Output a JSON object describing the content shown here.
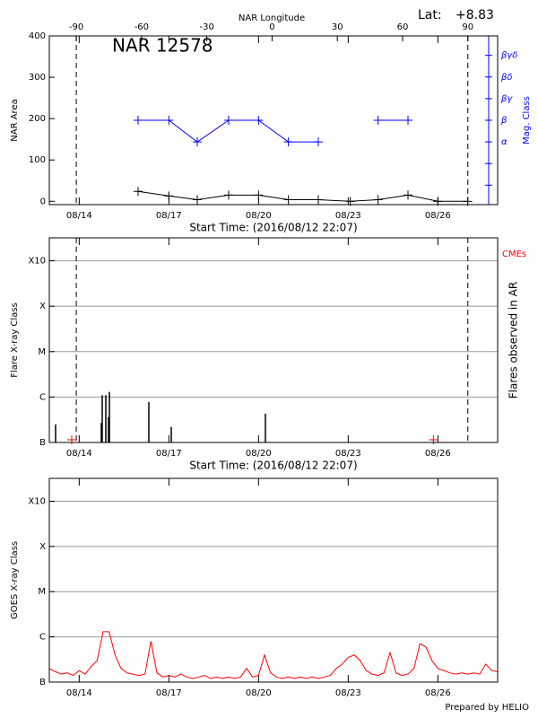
{
  "footer": "Prepared by HELIO",
  "chart_data": [
    {
      "type": "line",
      "title": "NAR 12578",
      "lat_label": "Lat:",
      "lat_value": "+8.83",
      "x2label": "NAR Longitude",
      "xlabel": "Start Time: (2016/08/12 22:07)",
      "ylabel": "NAR Area",
      "y2label": "Mag. Class",
      "x": [
        15.97,
        17.0,
        17.95,
        19.0,
        20.0,
        21.0,
        22.0,
        23.07,
        24.0,
        25.0,
        26.0,
        27.0
      ],
      "series": [
        {
          "color": "#000000",
          "values": [
            24,
            13,
            4,
            15,
            15,
            4,
            4,
            0,
            4,
            15,
            0,
            0
          ]
        },
        {
          "color": "#0000ff",
          "axis": "y2",
          "values": [
            2,
            2,
            1,
            2,
            2,
            1,
            1,
            null,
            2,
            2,
            null,
            null
          ]
        }
      ],
      "markers": true,
      "xlim": [
        13.0,
        28.0
      ],
      "xticks": [
        {
          "value": 14,
          "label": "08/14"
        },
        {
          "value": 17,
          "label": "08/17"
        },
        {
          "value": 20,
          "label": "08/20"
        },
        {
          "value": 23,
          "label": "08/23"
        },
        {
          "value": 26,
          "label": "08/26"
        }
      ],
      "x2lim": [
        -102.4,
        103.7
      ],
      "x2ticks": [
        -90,
        -60,
        -30,
        0,
        30,
        60,
        90
      ],
      "ylim": [
        -8,
        400
      ],
      "yticks": [
        0,
        100,
        200,
        300,
        400
      ],
      "y2lim": [
        -1.9,
        5.9
      ],
      "y2ticks": [
        {
          "value": 1,
          "label": "α"
        },
        {
          "value": 2,
          "label": "β"
        },
        {
          "value": 3,
          "label": "βγ"
        },
        {
          "value": 4,
          "label": "βδ"
        },
        {
          "value": 5,
          "label": "βγδ"
        }
      ],
      "y2minor": [
        -1,
        0
      ]
    },
    {
      "type": "bar",
      "xlabel": "Start Time: (2016/08/12 22:07)",
      "ylabel": "Flare X-ray Class",
      "y2label": "Flares observed in AR",
      "x": [
        13.21,
        14.74,
        14.77,
        14.89,
        14.98,
        15.01,
        16.33,
        17.08,
        20.23
      ],
      "values": [
        2.5e-07,
        2.7e-07,
        1.1e-06,
        1.1e-06,
        3.6e-07,
        1.3e-06,
        7.8e-07,
        2.2e-07,
        4.3e-07
      ],
      "color": "#000000",
      "cmes": {
        "name": "CMEs",
        "color": "#ff0000",
        "x": [
          13.75,
          25.85
        ]
      },
      "log": true,
      "grid": true,
      "xlim": [
        13.0,
        28.0
      ],
      "xticks": [
        {
          "value": 14,
          "label": "08/14"
        },
        {
          "value": 17,
          "label": "08/17"
        },
        {
          "value": 20,
          "label": "08/20"
        },
        {
          "value": 23,
          "label": "08/23"
        },
        {
          "value": 26,
          "label": "08/26"
        }
      ],
      "ylim": [
        1e-07,
        0.0032
      ],
      "yticks": [
        {
          "value": 1e-07,
          "label": "B"
        },
        {
          "value": 1e-06,
          "label": "C"
        },
        {
          "value": 1e-05,
          "label": "M"
        },
        {
          "value": 0.0001,
          "label": "X"
        },
        {
          "value": 0.001,
          "label": "X10"
        }
      ]
    },
    {
      "type": "line",
      "ylabel": "GOES X-ray Class",
      "x": [
        13.0,
        13.2,
        13.4,
        13.6,
        13.8,
        14.0,
        14.2,
        14.4,
        14.6,
        14.8,
        15.0,
        15.2,
        15.4,
        15.6,
        15.8,
        16.0,
        16.2,
        16.4,
        16.6,
        16.8,
        17.0,
        17.2,
        17.4,
        17.6,
        17.8,
        18.0,
        18.2,
        18.4,
        18.6,
        18.8,
        19.0,
        19.2,
        19.4,
        19.6,
        19.8,
        20.0,
        20.2,
        20.4,
        20.6,
        20.8,
        21.0,
        21.2,
        21.4,
        21.6,
        21.8,
        22.0,
        22.2,
        22.4,
        22.6,
        22.8,
        23.0,
        23.2,
        23.4,
        23.6,
        23.8,
        24.0,
        24.2,
        24.4,
        24.6,
        24.8,
        25.0,
        25.2,
        25.4,
        25.6,
        25.8,
        26.0,
        26.2,
        26.4,
        26.6,
        26.8,
        27.0,
        27.2,
        27.4,
        27.6,
        27.8,
        28.0
      ],
      "series": [
        {
          "color": "#ff0000",
          "values": [
            2e-07,
            1.7e-07,
            1.5e-07,
            1.6e-07,
            1.4e-07,
            1.8e-07,
            1.5e-07,
            2.2e-07,
            3e-07,
            1.3e-06,
            1.3e-06,
            4e-07,
            2e-07,
            1.6e-07,
            1.5e-07,
            1.4e-07,
            1.5e-07,
            8e-07,
            1.6e-07,
            1.3e-07,
            1.4e-07,
            1.3e-07,
            1.5e-07,
            1.3e-07,
            1.2e-07,
            1.3e-07,
            1.4e-07,
            1.2e-07,
            1.3e-07,
            1.2e-07,
            1.3e-07,
            1.2e-07,
            1.3e-07,
            2e-07,
            1.3e-07,
            1.4e-07,
            4e-07,
            1.6e-07,
            1.3e-07,
            1.2e-07,
            1.3e-07,
            1.2e-07,
            1.3e-07,
            1.2e-07,
            1.3e-07,
            1.2e-07,
            1.3e-07,
            1.4e-07,
            2e-07,
            2.5e-07,
            3.5e-07,
            4e-07,
            3e-07,
            1.8e-07,
            1.5e-07,
            1.4e-07,
            1.6e-07,
            4.5e-07,
            1.6e-07,
            1.4e-07,
            1.5e-07,
            2e-07,
            7e-07,
            6e-07,
            3e-07,
            2e-07,
            1.8e-07,
            1.6e-07,
            1.5e-07,
            1.6e-07,
            1.5e-07,
            1.6e-07,
            1.5e-07,
            2.5e-07,
            1.8e-07,
            1.7e-07
          ]
        }
      ],
      "log": true,
      "grid": true,
      "xlim": [
        13.0,
        28.0
      ],
      "xticks": [
        {
          "value": 14,
          "label": "08/14"
        },
        {
          "value": 17,
          "label": "08/17"
        },
        {
          "value": 20,
          "label": "08/20"
        },
        {
          "value": 23,
          "label": "08/23"
        },
        {
          "value": 26,
          "label": "08/26"
        }
      ],
      "ylim": [
        1e-07,
        0.0032
      ],
      "yticks": [
        {
          "value": 1e-07,
          "label": "B"
        },
        {
          "value": 1e-06,
          "label": "C"
        },
        {
          "value": 1e-05,
          "label": "M"
        },
        {
          "value": 0.0001,
          "label": "X"
        },
        {
          "value": 0.001,
          "label": "X10"
        }
      ]
    }
  ]
}
